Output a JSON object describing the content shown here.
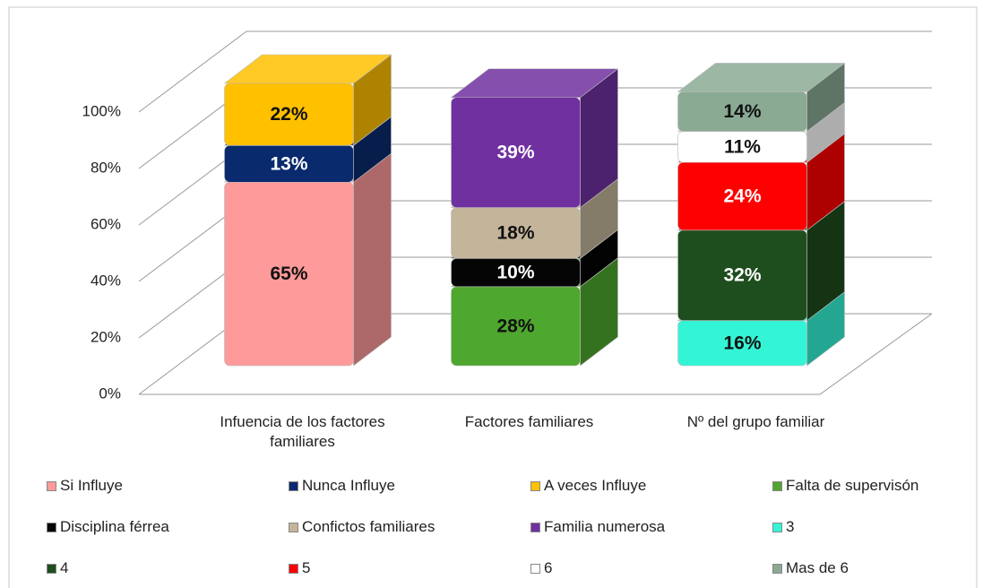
{
  "chart_data": {
    "type": "bar3d_stacked",
    "categories": [
      "Infuencia de los factores familiares",
      "Factores familiares",
      "Nº del grupo familiar"
    ],
    "series": [
      {
        "name": "Si Influye",
        "color": "#ff9a9a",
        "values": [
          65,
          null,
          null
        ],
        "value_labels": [
          "65%",
          null,
          null
        ]
      },
      {
        "name": "Nunca Influye",
        "color": "#0a2a6e",
        "values": [
          13,
          null,
          null
        ],
        "value_labels": [
          "13%",
          null,
          null
        ]
      },
      {
        "name": "A veces Influye",
        "color": "#ffc000",
        "values": [
          22,
          null,
          null
        ],
        "value_labels": [
          "22%",
          null,
          null
        ]
      },
      {
        "name": "Falta de supervisón",
        "color": "#4ea72e",
        "values": [
          null,
          28,
          null
        ],
        "value_labels": [
          null,
          "28%",
          null
        ]
      },
      {
        "name": "Disciplina férrea",
        "color": "#050505",
        "values": [
          null,
          10,
          null
        ],
        "value_labels": [
          null,
          "10%",
          null
        ]
      },
      {
        "name": "Confictos familiares",
        "color": "#c4b59a",
        "values": [
          null,
          18,
          null
        ],
        "value_labels": [
          null,
          "18%",
          null
        ]
      },
      {
        "name": "Familia numerosa",
        "color": "#7030a0",
        "values": [
          null,
          39,
          null
        ],
        "value_labels": [
          null,
          "39%",
          null
        ]
      },
      {
        "name": "3",
        "color": "#33f5d6",
        "values": [
          null,
          null,
          16
        ],
        "value_labels": [
          null,
          null,
          "16%"
        ]
      },
      {
        "name": "4",
        "color": "#1e4d1e",
        "values": [
          null,
          null,
          32
        ],
        "value_labels": [
          null,
          null,
          "32%"
        ]
      },
      {
        "name": "5",
        "color": "#ff0000",
        "values": [
          null,
          null,
          24
        ],
        "value_labels": [
          null,
          null,
          "24%"
        ]
      },
      {
        "name": "6",
        "color": "#ffffff",
        "values": [
          null,
          null,
          11
        ],
        "value_labels": [
          null,
          null,
          "11%"
        ]
      },
      {
        "name": "Mas de 6",
        "color": "#8aaa94",
        "values": [
          null,
          null,
          14
        ],
        "value_labels": [
          null,
          null,
          "14%"
        ]
      }
    ],
    "ylim": [
      0,
      100
    ],
    "yticks": [
      {
        "value": 0,
        "label": "0%"
      },
      {
        "value": 20,
        "label": "20%"
      },
      {
        "value": 40,
        "label": "40%"
      },
      {
        "value": 60,
        "label": "60%"
      },
      {
        "value": 80,
        "label": "80%"
      },
      {
        "value": 100,
        "label": "100%"
      }
    ],
    "grid": true
  }
}
